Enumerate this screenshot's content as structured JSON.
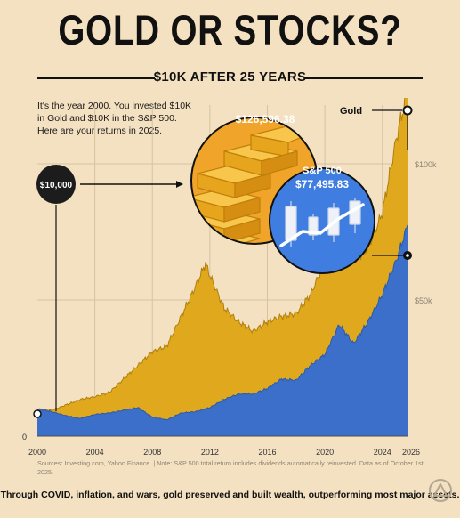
{
  "poster": {
    "title": "GOLD OR STOCKS?",
    "subtitle": "$10K AFTER 25 YEARS",
    "intro": "It's the year 2000. You invested $10K in Gold and $10K in the S&P 500. Here are your returns in 2025.",
    "start_badge": "$10,000",
    "gold_label": "Gold",
    "gold_value": "$126,596.38",
    "sp_label": "S&P 500",
    "sp_value": "$77,495.83",
    "sources": "Sources: Investing.com, Yahoo Finance. | Note: S&P 500 total return includes dividends automatically reinvested. Data as of October 1st, 2025.",
    "footer": "Through COVID, inflation, and wars, gold preserved and built wealth, outperforming most major assets.",
    "logo_icon": "triangle-logo-icon",
    "colors": {
      "background": "#f3e1c1",
      "gold": "#e0a81c",
      "gold_dark": "#b07f0c",
      "sp500": "#3b6fc9",
      "sp500_dark": "#2a5aad",
      "ink": "#111111",
      "grid": "#d7c39f"
    }
  },
  "chart_data": {
    "type": "area",
    "xlim": [
      2000,
      2026
    ],
    "ylim": [
      0,
      130000
    ],
    "grid": true,
    "x_ticks": [
      "2000",
      "2004",
      "2008",
      "2012",
      "2016",
      "2020",
      "2024",
      "2026"
    ],
    "y_ticks": [
      "0",
      "$50k",
      "$100k"
    ],
    "series": [
      {
        "name": "Gold",
        "color": "#e0a81c",
        "x": [
          2000,
          2001,
          2002,
          2003,
          2004,
          2005,
          2006,
          2007,
          2008,
          2009,
          2010,
          2011,
          2011.7,
          2012,
          2013,
          2014,
          2015,
          2016,
          2017,
          2018,
          2019,
          2020,
          2020.6,
          2021,
          2022,
          2023,
          2024,
          2025,
          2025.75
        ],
        "y": [
          10000,
          9500,
          11500,
          13500,
          14500,
          16000,
          21000,
          26000,
          31000,
          33000,
          44000,
          55000,
          63500,
          59000,
          47000,
          42000,
          38500,
          42000,
          44000,
          45000,
          52000,
          64000,
          71000,
          65000,
          64000,
          69000,
          82000,
          110000,
          126596.38
        ]
      },
      {
        "name": "S&P 500",
        "color": "#3b6fc9",
        "x": [
          2000,
          2001,
          2002,
          2003,
          2004,
          2005,
          2006,
          2007,
          2008,
          2009,
          2010,
          2011,
          2012,
          2013,
          2014,
          2015,
          2016,
          2017,
          2018,
          2019,
          2020,
          2021,
          2022,
          2023,
          2024,
          2025,
          2025.75
        ],
        "y": [
          10000,
          9000,
          7500,
          6500,
          8000,
          8500,
          9500,
          10500,
          7000,
          6000,
          8500,
          9000,
          10500,
          13500,
          15500,
          15500,
          17500,
          21000,
          20500,
          26000,
          30000,
          41000,
          34000,
          42000,
          52000,
          65000,
          77495.83
        ]
      }
    ]
  }
}
